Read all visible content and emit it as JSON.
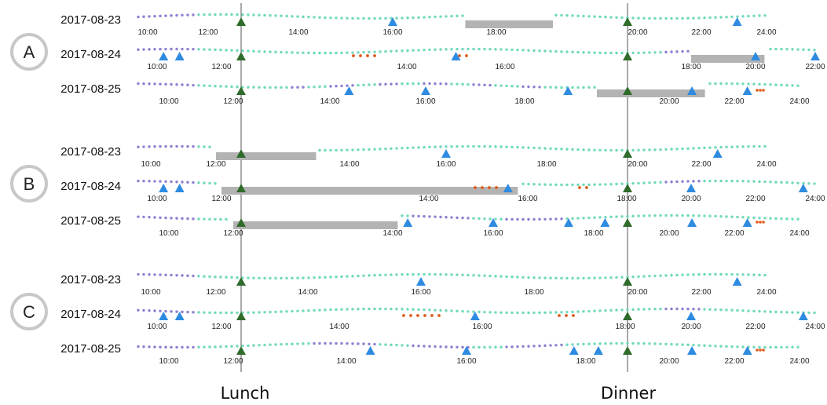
{
  "colors": {
    "home": "#8B7FD0",
    "travel": "#6FD9BC",
    "purchase": "#E05A1A",
    "event": "#2E8BE0",
    "anchor": "#2F6B2A",
    "idle": "#B3B3B3",
    "circle": "#C8C8C8",
    "guide": "#555555"
  },
  "anchors": [
    {
      "label": "Lunch",
      "hour": 12
    },
    {
      "label": "Dinner",
      "hour": 18
    }
  ],
  "icons": {
    "event": "triangle-up-icon",
    "anchor": "anchor-triangle-icon",
    "panel": "circle-badge-icon"
  },
  "panels": [
    {
      "letter": "A",
      "rows": [
        {
          "date": "2017-08-23",
          "ticks": [
            {
              "label": "10:00",
              "h": 10
            },
            {
              "label": "12:00",
              "h": 12
            },
            {
              "label": "14:00",
              "h": 14
            },
            {
              "label": "16:00",
              "h": 16
            },
            {
              "label": "18:00",
              "h": 18
            },
            {
              "label": "20:00",
              "h": 20
            },
            {
              "label": "22:00",
              "h": 22
            },
            {
              "label": "24:00",
              "h": 24
            }
          ],
          "gaps": [
            [
              17.4,
              18.8
            ]
          ],
          "events": [
            16.0,
            23.1
          ]
        },
        {
          "date": "2017-08-24",
          "ticks": [
            {
              "label": "10:00",
              "h": 10
            },
            {
              "label": "12:00",
              "h": 12
            },
            {
              "label": "14:00",
              "h": 14
            },
            {
              "label": "16:00",
              "h": 16
            },
            {
              "label": "18:00",
              "h": 18
            },
            {
              "label": "20:00",
              "h": 20
            },
            {
              "label": "22:00",
              "h": 22
            },
            {
              "label": "24:00",
              "h": 24
            }
          ],
          "gaps": [
            [
              18.0,
              20.3
            ]
          ],
          "events": [
            10.2,
            10.7,
            15.0,
            20.0,
            23.6
          ]
        },
        {
          "date": "2017-08-25",
          "ticks": [
            {
              "label": "10:00",
              "h": 10
            },
            {
              "label": "12:00",
              "h": 12
            },
            {
              "label": "14:00",
              "h": 14
            },
            {
              "label": "16:00",
              "h": 16
            },
            {
              "label": "18:00",
              "h": 18
            },
            {
              "label": "20:00",
              "h": 20
            },
            {
              "label": "22:00",
              "h": 22
            },
            {
              "label": "24:00",
              "h": 24
            }
          ],
          "gaps": [
            [
              19.0,
              21.1
            ]
          ],
          "events": [
            14.4,
            16.0,
            18.6,
            20.7,
            22.4
          ]
        }
      ]
    },
    {
      "letter": "B",
      "rows": [
        {
          "date": "2017-08-23",
          "ticks": [
            {
              "label": "10:00",
              "h": 10
            },
            {
              "label": "12:00",
              "h": 12
            },
            {
              "label": "14:00",
              "h": 14
            },
            {
              "label": "16:00",
              "h": 16
            },
            {
              "label": "18:00",
              "h": 18
            },
            {
              "label": "20:00",
              "h": 20
            },
            {
              "label": "22:00",
              "h": 22
            },
            {
              "label": "24:00",
              "h": 24
            }
          ],
          "gaps": [
            [
              12.0,
              13.5
            ]
          ],
          "events": [
            16.0,
            22.5
          ]
        },
        {
          "date": "2017-08-24",
          "ticks": [
            {
              "label": "10:00",
              "h": 10
            },
            {
              "label": "12:00",
              "h": 12
            },
            {
              "label": "14:00",
              "h": 14
            },
            {
              "label": "16:00",
              "h": 16
            },
            {
              "label": "18:00",
              "h": 18
            },
            {
              "label": "20:00",
              "h": 20
            },
            {
              "label": "22:00",
              "h": 22
            },
            {
              "label": "24:00",
              "h": 24
            }
          ],
          "gaps": [
            [
              12.0,
              15.8
            ]
          ],
          "events": [
            10.2,
            10.7,
            15.6,
            20.0,
            23.6
          ]
        },
        {
          "date": "2017-08-25",
          "ticks": [
            {
              "label": "10:00",
              "h": 10
            },
            {
              "label": "12:00",
              "h": 12
            },
            {
              "label": "14:00",
              "h": 14
            },
            {
              "label": "16:00",
              "h": 16
            },
            {
              "label": "18:00",
              "h": 18
            },
            {
              "label": "20:00",
              "h": 20
            },
            {
              "label": "22:00",
              "h": 22
            },
            {
              "label": "24:00",
              "h": 24
            }
          ],
          "gaps": [
            [
              12.0,
              14.1
            ]
          ],
          "events": [
            14.3,
            16.0,
            17.5,
            18.3,
            20.7,
            22.4
          ]
        }
      ]
    },
    {
      "letter": "C",
      "rows": [
        {
          "date": "2017-08-23",
          "ticks": [
            {
              "label": "10:00",
              "h": 10
            },
            {
              "label": "12:00",
              "h": 12
            },
            {
              "label": "14:00",
              "h": 14
            },
            {
              "label": "16:00",
              "h": 16
            },
            {
              "label": "18:00",
              "h": 18
            },
            {
              "label": "20:00",
              "h": 20
            },
            {
              "label": "22:00",
              "h": 22
            },
            {
              "label": "24:00",
              "h": 24
            }
          ],
          "gaps": [],
          "events": [
            16.0,
            23.1
          ]
        },
        {
          "date": "2017-08-24",
          "ticks": [
            {
              "label": "10:00",
              "h": 10
            },
            {
              "label": "12:00",
              "h": 12
            },
            {
              "label": "14:00",
              "h": 14
            },
            {
              "label": "16:00",
              "h": 16
            },
            {
              "label": "18:00",
              "h": 18
            },
            {
              "label": "20:00",
              "h": 20
            },
            {
              "label": "22:00",
              "h": 22
            },
            {
              "label": "24:00",
              "h": 24
            }
          ],
          "gaps": [],
          "events": [
            10.2,
            10.7,
            15.9,
            20.0,
            23.6
          ]
        },
        {
          "date": "2017-08-25",
          "ticks": [
            {
              "label": "10:00",
              "h": 10
            },
            {
              "label": "12:00",
              "h": 12
            },
            {
              "label": "14:00",
              "h": 14
            },
            {
              "label": "16:00",
              "h": 16
            },
            {
              "label": "18:00",
              "h": 18
            },
            {
              "label": "20:00",
              "h": 20
            },
            {
              "label": "22:00",
              "h": 22
            },
            {
              "label": "24:00",
              "h": 24
            }
          ],
          "gaps": [],
          "events": [
            14.4,
            16.0,
            17.8,
            18.3,
            20.7,
            22.4
          ]
        }
      ]
    }
  ]
}
